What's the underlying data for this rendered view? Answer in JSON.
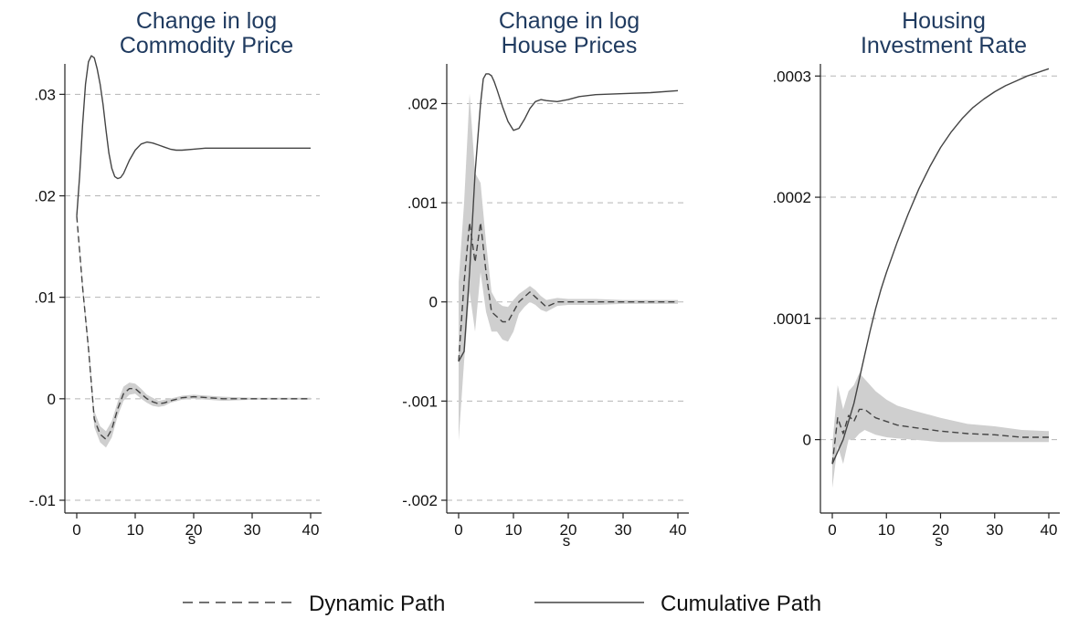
{
  "legend": {
    "items": [
      {
        "label": "Dynamic Path",
        "style": "dashed"
      },
      {
        "label": "Cumulative Path",
        "style": "solid"
      }
    ]
  },
  "colors": {
    "title": "#1f3a5f",
    "line": "#444444",
    "band": "#cfcfcf",
    "grid": "#b5b5b5",
    "axis": "#222222"
  },
  "chart_data": [
    {
      "type": "line",
      "title": "Change in log Commodity Price",
      "title_lines": [
        "Change in log",
        "Commodity Price"
      ],
      "xlabel": "s",
      "ylabel": "",
      "xlim": [
        0,
        40
      ],
      "ylim": [
        -0.01,
        0.033
      ],
      "xticks": [
        0,
        10,
        20,
        30,
        40
      ],
      "xtick_labels": [
        "0",
        "10",
        "20",
        "30",
        "40"
      ],
      "yticks": [
        -0.01,
        0,
        0.01,
        0.02,
        0.03
      ],
      "ytick_labels": [
        "-.01",
        "0",
        ".01",
        ".02",
        ".03"
      ],
      "grid": "horizontal dashed",
      "series": [
        {
          "name": "Dynamic Path",
          "style": "dashed",
          "x": [
            0,
            1,
            2,
            3,
            4,
            5,
            6,
            7,
            8,
            9,
            10,
            11,
            12,
            13,
            14,
            15,
            16,
            18,
            20,
            25,
            30,
            35,
            40
          ],
          "y": [
            0.018,
            0.011,
            0.005,
            -0.002,
            -0.0035,
            -0.004,
            -0.003,
            -0.001,
            0.0005,
            0.001,
            0.001,
            0.0005,
            0.0,
            -0.0003,
            -0.0005,
            -0.0004,
            -0.0002,
            0.0001,
            0.0002,
            0.0,
            0.0,
            0.0,
            0.0
          ],
          "lower": [
            0.018,
            0.0105,
            0.0045,
            -0.0028,
            -0.0043,
            -0.0048,
            -0.0038,
            -0.0017,
            -0.0002,
            0.0004,
            0.0005,
            0.0,
            -0.0004,
            -0.0007,
            -0.0008,
            -0.0007,
            -0.0004,
            -0.0001,
            0.0,
            -0.0002,
            -0.0001,
            -0.0001,
            -0.0001
          ],
          "upper": [
            0.018,
            0.0115,
            0.0055,
            -0.0012,
            -0.0027,
            -0.0032,
            -0.0022,
            -0.0003,
            0.0012,
            0.0016,
            0.0015,
            0.001,
            0.0004,
            0.0001,
            -0.0002,
            -0.0001,
            0.0,
            0.0003,
            0.0004,
            0.0002,
            0.0001,
            0.0001,
            0.0001
          ]
        },
        {
          "name": "Cumulative Path",
          "style": "solid",
          "x": [
            0,
            0.5,
            1,
            1.5,
            2,
            2.5,
            3,
            3.5,
            4,
            4.5,
            5,
            5.5,
            6,
            6.5,
            7,
            7.5,
            8,
            9,
            10,
            11,
            12,
            13,
            14,
            15,
            16,
            17,
            18,
            20,
            22,
            25,
            30,
            35,
            40
          ],
          "y": [
            0.018,
            0.022,
            0.027,
            0.031,
            0.0332,
            0.0338,
            0.0336,
            0.0325,
            0.031,
            0.029,
            0.0265,
            0.0242,
            0.0227,
            0.0219,
            0.0217,
            0.0218,
            0.0222,
            0.0235,
            0.0245,
            0.0251,
            0.0253,
            0.0252,
            0.025,
            0.0248,
            0.0246,
            0.0245,
            0.0245,
            0.0246,
            0.0247,
            0.0247,
            0.0247,
            0.0247,
            0.0247
          ]
        }
      ]
    },
    {
      "type": "line",
      "title": "Change in log House Prices",
      "title_lines": [
        "Change in log",
        "House Prices"
      ],
      "xlabel": "s",
      "ylabel": "",
      "xlim": [
        0,
        40
      ],
      "ylim": [
        -0.002,
        0.0024
      ],
      "xticks": [
        0,
        10,
        20,
        30,
        40
      ],
      "xtick_labels": [
        "0",
        "10",
        "20",
        "30",
        "40"
      ],
      "yticks": [
        -0.002,
        -0.001,
        0,
        0.001,
        0.002
      ],
      "ytick_labels": [
        "-.002",
        "-.001",
        "0",
        ".001",
        ".002"
      ],
      "grid": "horizontal dashed",
      "series": [
        {
          "name": "Dynamic Path",
          "style": "dashed",
          "x": [
            0,
            1,
            2,
            3,
            4,
            5,
            6,
            7,
            8,
            9,
            10,
            11,
            12,
            13,
            14,
            15,
            16,
            18,
            20,
            25,
            30,
            35,
            40
          ],
          "y": [
            -0.0006,
            0.0002,
            0.0008,
            0.0004,
            0.0008,
            0.0003,
            -0.0001,
            -0.00015,
            -0.0002,
            -0.0002,
            -0.0001,
            0.0,
            5e-05,
            0.0001,
            5e-05,
            0.0,
            -5e-05,
            0.0,
            0.0,
            0.0,
            0.0,
            0.0,
            0.0
          ],
          "lower": [
            -0.0014,
            -0.0006,
            0.0001,
            -0.0003,
            0.0003,
            -0.0001,
            -0.0003,
            -0.0003,
            -0.00038,
            -0.0004,
            -0.0003,
            -0.00012,
            -5e-05,
            0.0,
            -3e-05,
            -8e-05,
            -0.0001,
            -4e-05,
            -3e-05,
            -3e-05,
            -2e-05,
            -2e-05,
            -2e-05
          ],
          "upper": [
            0.0002,
            0.001,
            0.0021,
            0.0013,
            0.0012,
            0.0006,
            0.0001,
            0.0,
            -4e-05,
            -5e-05,
            2e-05,
            8e-05,
            0.00012,
            0.00016,
            0.00012,
            6e-05,
            2e-05,
            4e-05,
            3e-05,
            3e-05,
            2e-05,
            2e-05,
            2e-05
          ]
        },
        {
          "name": "Cumulative Path",
          "style": "solid",
          "x": [
            0,
            1,
            2,
            3,
            4,
            4.5,
            5,
            5.5,
            6,
            6.5,
            7,
            8,
            9,
            10,
            11,
            12,
            13,
            14,
            15,
            16,
            18,
            20,
            22,
            25,
            30,
            35,
            40
          ],
          "y": [
            -0.0006,
            -0.0005,
            0.0003,
            0.0013,
            0.002,
            0.00225,
            0.0023,
            0.0023,
            0.00228,
            0.00222,
            0.00214,
            0.00197,
            0.00182,
            0.00173,
            0.00175,
            0.00184,
            0.00195,
            0.00202,
            0.00204,
            0.00203,
            0.00202,
            0.00204,
            0.00207,
            0.00209,
            0.0021,
            0.00211,
            0.00213
          ]
        }
      ]
    },
    {
      "type": "line",
      "title": "Housing Investment Rate",
      "title_lines": [
        "Housing",
        "Investment Rate"
      ],
      "xlabel": "s",
      "ylabel": "",
      "xlim": [
        0,
        40
      ],
      "ylim": [
        -5e-05,
        0.00031
      ],
      "xticks": [
        0,
        10,
        20,
        30,
        40
      ],
      "xtick_labels": [
        "0",
        "10",
        "20",
        "30",
        "40"
      ],
      "yticks": [
        0,
        0.0001,
        0.0002,
        0.0003
      ],
      "ytick_labels": [
        "0",
        ".0001",
        ".0002",
        ".0003"
      ],
      "grid": "horizontal dashed",
      "series": [
        {
          "name": "Dynamic Path",
          "style": "dashed",
          "x": [
            0,
            1,
            2,
            3,
            4,
            5,
            6,
            8,
            10,
            12,
            15,
            20,
            25,
            30,
            35,
            40
          ],
          "y": [
            -2e-05,
            1.8e-05,
            5e-06,
            2e-05,
            1.5e-05,
            2.5e-05,
            2.5e-05,
            1.8e-05,
            1.5e-05,
            1.2e-05,
            1e-05,
            7e-06,
            5e-06,
            4e-06,
            2e-06,
            2e-06
          ],
          "lower": [
            -4e-05,
            -5e-06,
            -2e-05,
            0.0,
            0.0,
            5e-06,
            8e-06,
            4e-06,
            2e-06,
            1e-06,
            0.0,
            -2e-06,
            -2e-06,
            -2e-06,
            -2e-06,
            -2e-06
          ],
          "upper": [
            -5e-06,
            4.5e-05,
            2.5e-05,
            4e-05,
            4.5e-05,
            5.5e-05,
            5e-05,
            4e-05,
            3.3e-05,
            2.8e-05,
            2.4e-05,
            1.8e-05,
            1.3e-05,
            1.1e-05,
            8e-06,
            7e-06
          ]
        },
        {
          "name": "Cumulative Path",
          "style": "solid",
          "x": [
            0,
            1,
            2,
            3,
            4,
            5,
            6,
            7,
            8,
            9,
            10,
            12,
            14,
            16,
            18,
            20,
            22,
            24,
            26,
            28,
            30,
            32,
            34,
            36,
            38,
            40
          ],
          "y": [
            -2e-05,
            -1e-05,
            0.0,
            1.5e-05,
            3e-05,
            5e-05,
            7e-05,
            9e-05,
            0.000108,
            0.000124,
            0.000138,
            0.000163,
            0.000186,
            0.000207,
            0.000225,
            0.000241,
            0.000254,
            0.000265,
            0.000274,
            0.000281,
            0.000287,
            0.000292,
            0.000296,
            0.0003,
            0.000303,
            0.000306
          ]
        }
      ]
    }
  ]
}
